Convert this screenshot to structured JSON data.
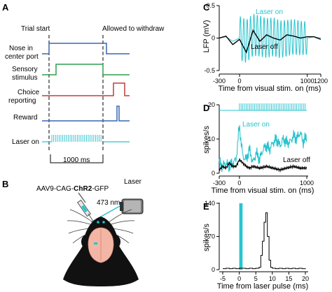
{
  "colors": {
    "cyan": "#27c4cf",
    "nose_blue": "#3a66b4",
    "stim_green": "#2e9e4f",
    "choice_red": "#c43a3a",
    "reward_blue": "#3a66b4",
    "black": "#000000"
  },
  "panelA": {
    "label": "A",
    "trial_start": "Trial start",
    "allowed": "Allowed to withdraw",
    "rows": [
      "Nose in",
      "center port",
      "Sensory",
      "stimulus",
      "Choice",
      "reporting",
      "Reward",
      "Laser on"
    ],
    "scale_bar": "1000 ms"
  },
  "panelB": {
    "label": "B",
    "construct_pre": "AAV9-CAG-",
    "construct_bold": "ChR2",
    "construct_post": "-GFP",
    "laser": "Laser",
    "wavelength": "473 nm"
  },
  "panelC": {
    "label": "C",
    "ylabel": "LFP (mV)",
    "xlabel": "Time from visual stim. on (ms)",
    "laser_on": "Laser on",
    "laser_off": "Laser off",
    "yticks": [
      "0.5",
      "0",
      "-0.5"
    ],
    "xticks": [
      "-300",
      "0",
      "1000",
      "1200"
    ]
  },
  "panelD": {
    "label": "D",
    "ylabel": "spikes/s",
    "xlabel": "Time from visual stim. on (ms)",
    "laser_on": "Laser on",
    "laser_off": "Laser off",
    "yticks": [
      "20",
      "10",
      "0"
    ],
    "xticks": [
      "-300",
      "0",
      "1000"
    ]
  },
  "panelE": {
    "label": "E",
    "ylabel": "spikes/s",
    "xlabel": "Time from laser pulse (ms)",
    "yticks": [
      "140",
      "70",
      "0"
    ],
    "xticks": [
      "-5",
      "0",
      "5",
      "10",
      "15",
      "20"
    ]
  },
  "chart_data": [
    {
      "type": "line",
      "panel": "C",
      "xlabel": "Time from visual stim. on (ms)",
      "ylabel": "LFP (mV)",
      "xlim": [
        -300,
        1200
      ],
      "ylim": [
        -0.5,
        0.5
      ],
      "series": [
        {
          "name": "Laser on",
          "x": [
            -300,
            -200,
            -100,
            0,
            100,
            200,
            300,
            400,
            500,
            600,
            700,
            800,
            900,
            1000,
            1100,
            1200
          ],
          "y": [
            0,
            0.02,
            -0.05,
            0,
            -0.05,
            0.05,
            0.03,
            0.0,
            0.02,
            -0.02,
            0.0,
            0.02,
            0.0,
            0.0,
            0.02,
            0.0
          ]
        },
        {
          "name": "Laser off",
          "x": [
            -300,
            -200,
            -100,
            0,
            100,
            200,
            300,
            400,
            500,
            600,
            700,
            800,
            900,
            1000,
            1100,
            1200
          ],
          "y": [
            0,
            0.03,
            -0.1,
            -0.02,
            -0.22,
            0.12,
            -0.05,
            0.05,
            0.0,
            -0.03,
            0.05,
            0.03,
            0.0,
            0.02,
            0.02,
            -0.02
          ]
        }
      ]
    },
    {
      "type": "line",
      "panel": "D",
      "xlabel": "Time from visual stim. on (ms)",
      "ylabel": "spikes/s",
      "xlim": [
        -300,
        1000
      ],
      "ylim": [
        0,
        20
      ],
      "series": [
        {
          "name": "Laser on",
          "x": [
            -300,
            -250,
            -200,
            -150,
            -100,
            -50,
            0,
            25,
            50,
            100,
            150,
            200,
            250,
            300,
            350,
            400,
            450,
            500,
            550,
            600,
            650,
            700,
            750,
            800,
            850,
            900,
            950,
            1000
          ],
          "y": [
            3,
            2,
            3,
            2,
            3,
            4,
            14,
            9,
            5,
            4,
            7,
            3,
            6,
            4,
            7,
            8,
            7,
            9,
            10,
            8,
            10,
            9,
            9,
            11,
            10,
            12,
            9,
            11
          ]
        },
        {
          "name": "Laser off",
          "x": [
            -300,
            -250,
            -200,
            -150,
            -100,
            -50,
            0,
            50,
            100,
            150,
            200,
            300,
            400,
            500,
            600,
            700,
            800,
            900,
            1000
          ],
          "y": [
            1,
            2,
            1.5,
            3,
            2,
            2,
            4,
            3,
            2,
            1.5,
            2,
            1.5,
            2,
            1.5,
            1,
            1.5,
            2,
            1.5,
            1.5
          ]
        }
      ]
    },
    {
      "type": "bar",
      "panel": "E",
      "xlabel": "Time from laser pulse (ms)",
      "ylabel": "spikes/s",
      "xlim": [
        -5,
        20
      ],
      "ylim": [
        0,
        140
      ],
      "x": [
        -5,
        -4,
        -3,
        -2,
        -1,
        0,
        1,
        2,
        3,
        4,
        5,
        6,
        6.5,
        7,
        7.5,
        8,
        8.5,
        9,
        9.5,
        10,
        11,
        12,
        13,
        14,
        15,
        16,
        17,
        18,
        19,
        20
      ],
      "y": [
        2,
        3,
        2,
        3,
        2,
        3,
        3,
        2,
        3,
        2,
        3,
        5,
        30,
        60,
        100,
        120,
        70,
        20,
        5,
        3,
        2,
        3,
        2,
        3,
        2,
        3,
        2,
        3,
        2,
        3
      ]
    }
  ]
}
